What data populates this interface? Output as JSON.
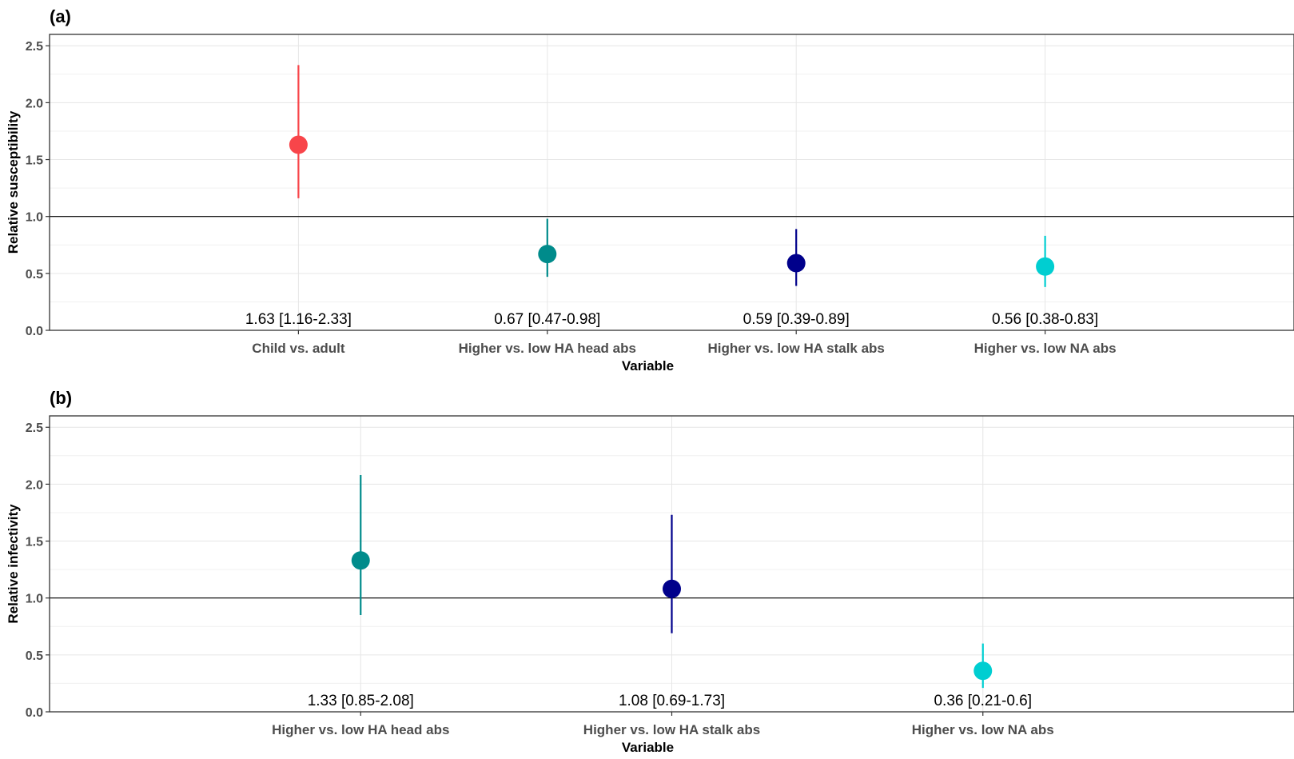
{
  "chart_data": [
    {
      "panel": "(a)",
      "type": "scatter",
      "subtype": "point-range",
      "xlabel": "Variable",
      "ylabel": "Relative susceptibility",
      "ylim": [
        0,
        2.6
      ],
      "yticks": [
        "0.0",
        "0.5",
        "1.0",
        "1.5",
        "2.0",
        "2.5"
      ],
      "reference_line": 1.0,
      "grid": true,
      "categories": [
        "Child vs. adult",
        "Higher vs. low HA head abs",
        "Higher vs. low HA stalk abs",
        "Higher vs. low NA abs"
      ],
      "points": [
        {
          "estimate": 1.63,
          "lower": 1.16,
          "upper": 2.33,
          "label": "1.63 [1.16-2.33]",
          "color": "#f8454a"
        },
        {
          "estimate": 0.67,
          "lower": 0.47,
          "upper": 0.98,
          "label": "0.67 [0.47-0.98]",
          "color": "#008b8b"
        },
        {
          "estimate": 0.59,
          "lower": 0.39,
          "upper": 0.89,
          "label": "0.59 [0.39-0.89]",
          "color": "#00008b"
        },
        {
          "estimate": 0.56,
          "lower": 0.38,
          "upper": 0.83,
          "label": "0.56 [0.38-0.83]",
          "color": "#00ced1"
        }
      ]
    },
    {
      "panel": "(b)",
      "type": "scatter",
      "subtype": "point-range",
      "xlabel": "Variable",
      "ylabel": "Relative infectivity",
      "ylim": [
        0,
        2.6
      ],
      "yticks": [
        "0.0",
        "0.5",
        "1.0",
        "1.5",
        "2.0",
        "2.5"
      ],
      "reference_line": 1.0,
      "grid": true,
      "categories": [
        "Higher vs. low HA head abs",
        "Higher vs. low HA stalk abs",
        "Higher vs. low NA abs"
      ],
      "points": [
        {
          "estimate": 1.33,
          "lower": 0.85,
          "upper": 2.08,
          "label": "1.33 [0.85-2.08]",
          "color": "#008b8b"
        },
        {
          "estimate": 1.08,
          "lower": 0.69,
          "upper": 1.73,
          "label": "1.08 [0.69-1.73]",
          "color": "#00008b"
        },
        {
          "estimate": 0.36,
          "lower": 0.21,
          "upper": 0.6,
          "label": "0.36 [0.21-0.6]",
          "color": "#00ced1"
        }
      ]
    }
  ]
}
